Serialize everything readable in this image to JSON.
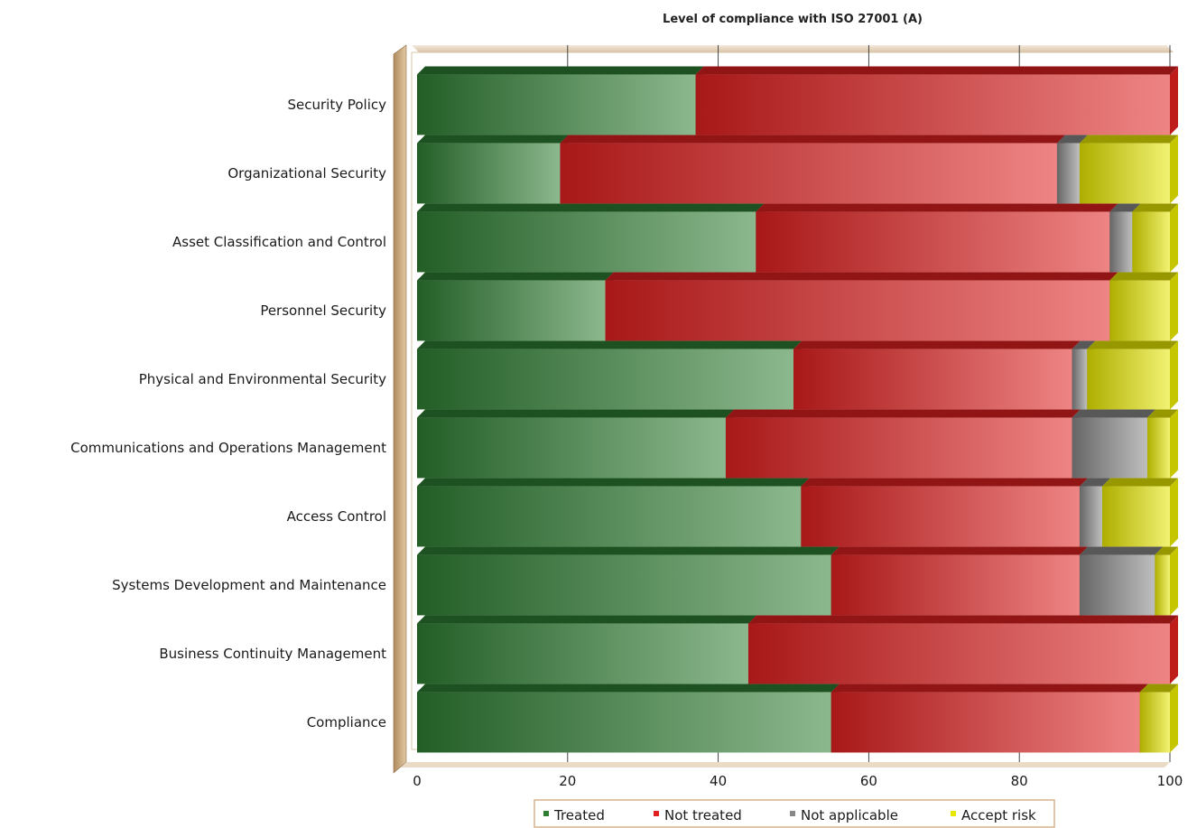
{
  "chart_data": {
    "type": "bar",
    "orientation": "horizontal",
    "stacked": true,
    "title": "Level of compliance with ISO 27001 (A)",
    "xlabel": "",
    "ylabel": "",
    "xlim": [
      0,
      100
    ],
    "x_ticks": [
      "0",
      "20",
      "40",
      "60",
      "80",
      "100"
    ],
    "grid": true,
    "legend_position": "bottom",
    "categories": [
      "Security Policy",
      "Organizational Security",
      "Asset Classification and Control",
      "Personnel Security",
      "Physical and Environmental Security",
      "Communications and Operations Management",
      "Access Control",
      "Systems Development and Maintenance",
      "Business Continuity Management",
      "Compliance"
    ],
    "series": [
      {
        "name": "Treated",
        "color": "#2e7d32",
        "values": [
          37,
          19,
          45,
          25,
          50,
          41,
          51,
          55,
          44,
          55
        ]
      },
      {
        "name": "Not treated",
        "color": "#e02020",
        "values": [
          63,
          66,
          47,
          67,
          37,
          46,
          37,
          33,
          56,
          41
        ]
      },
      {
        "name": "Not applicable",
        "color": "#888888",
        "values": [
          0,
          3,
          3,
          0,
          2,
          10,
          3,
          10,
          0,
          0
        ]
      },
      {
        "name": "Accept risk",
        "color": "#e8e800",
        "values": [
          0,
          12,
          5,
          8,
          11,
          3,
          9,
          2,
          0,
          4
        ]
      }
    ]
  }
}
